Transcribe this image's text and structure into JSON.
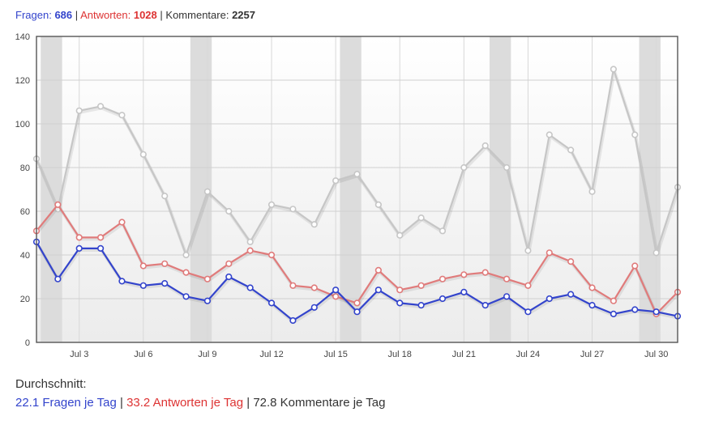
{
  "summary": {
    "questions_label": "Fragen:",
    "questions_count": "686",
    "answers_label": "Antworten:",
    "answers_count": "1028",
    "comments_label": "Kommentare:",
    "comments_count": "2257",
    "separator": "|"
  },
  "average": {
    "title": "Durchschnitt:",
    "questions": "22.1 Fragen je Tag",
    "answers": "33.2 Antworten je Tag",
    "comments": "72.8 Kommentare je Tag",
    "separator": "|"
  },
  "colors": {
    "questions": "#3344cc",
    "answers": "#e07b7b",
    "comments": "#c6c6c6",
    "weekend_band": "#dcdcdc"
  },
  "chart_data": {
    "type": "line",
    "ylim": [
      0,
      140
    ],
    "yticks": [
      0,
      20,
      40,
      60,
      80,
      100,
      120,
      140
    ],
    "x_days": [
      1,
      2,
      3,
      4,
      5,
      6,
      7,
      8,
      9,
      10,
      11,
      12,
      13,
      14,
      15,
      16,
      17,
      18,
      19,
      20,
      21,
      22,
      23,
      24,
      25,
      26,
      27,
      28,
      29,
      30,
      31
    ],
    "xtick_labels": [
      {
        "day": 3,
        "label": "Jul 3"
      },
      {
        "day": 6,
        "label": "Jul 6"
      },
      {
        "day": 9,
        "label": "Jul 9"
      },
      {
        "day": 12,
        "label": "Jul 12"
      },
      {
        "day": 15,
        "label": "Jul 15"
      },
      {
        "day": 18,
        "label": "Jul 18"
      },
      {
        "day": 21,
        "label": "Jul 21"
      },
      {
        "day": 24,
        "label": "Jul 24"
      },
      {
        "day": 27,
        "label": "Jul 27"
      },
      {
        "day": 30,
        "label": "Jul 30"
      }
    ],
    "weekend_bands": [
      [
        1.2,
        2.2
      ],
      [
        8.2,
        9.2
      ],
      [
        15.2,
        16.2
      ],
      [
        22.2,
        23.2
      ],
      [
        29.2,
        30.2
      ]
    ],
    "grid": true,
    "series": [
      {
        "key": "comments",
        "color": "#c6c6c6",
        "values": [
          84,
          61,
          106,
          108,
          104,
          86,
          67,
          40,
          69,
          60,
          46,
          63,
          61,
          54,
          74,
          77,
          63,
          49,
          57,
          51,
          80,
          90,
          80,
          42,
          95,
          88,
          69,
          125,
          95,
          41,
          71
        ]
      },
      {
        "key": "answers",
        "color": "#e07b7b",
        "values": [
          51,
          63,
          48,
          48,
          55,
          35,
          36,
          32,
          29,
          36,
          42,
          40,
          26,
          25,
          21,
          18,
          33,
          24,
          26,
          29,
          31,
          32,
          29,
          26,
          41,
          37,
          25,
          19,
          35,
          13,
          23
        ]
      },
      {
        "key": "questions",
        "color": "#3344cc",
        "values": [
          46,
          29,
          43,
          43,
          28,
          26,
          27,
          21,
          19,
          30,
          25,
          18,
          10,
          16,
          24,
          14,
          24,
          18,
          17,
          20,
          23,
          17,
          21,
          14,
          20,
          22,
          17,
          13,
          15,
          14,
          12
        ]
      }
    ]
  }
}
